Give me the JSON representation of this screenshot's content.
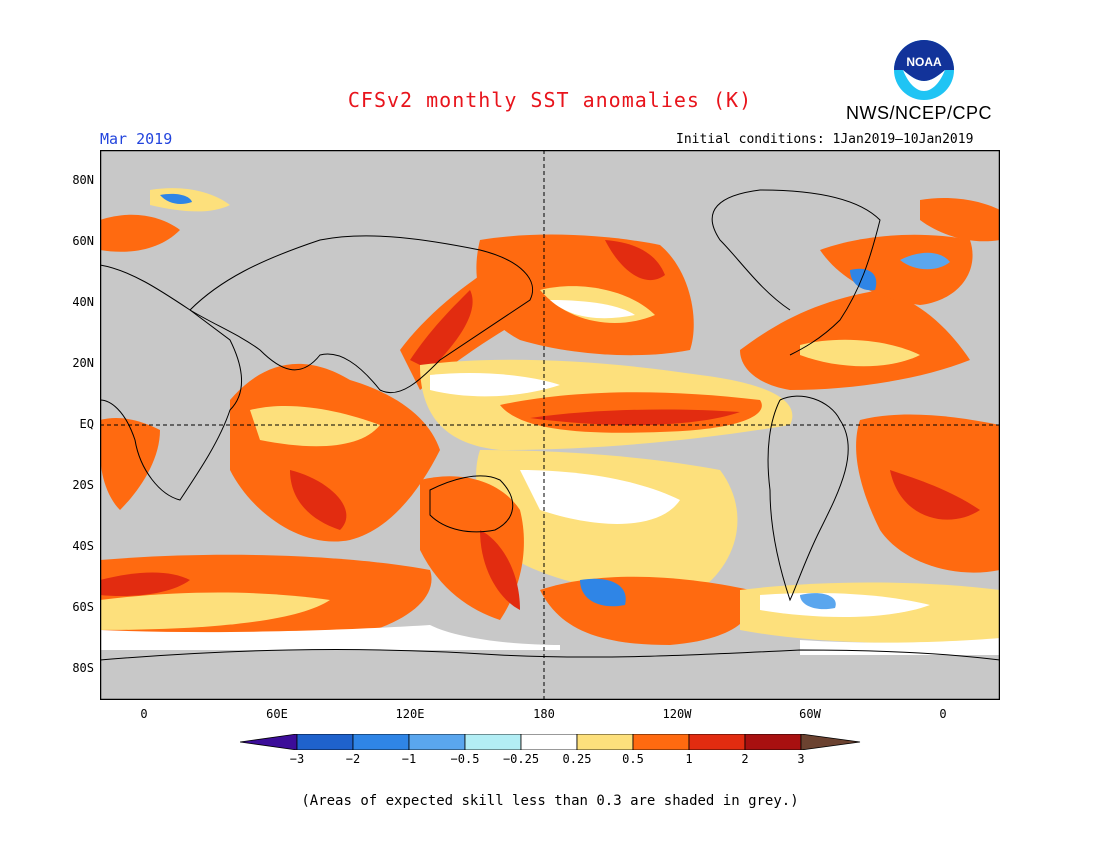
{
  "title": "CFSv2 monthly SST anomalies (K)",
  "agency": "NWS/NCEP/CPC",
  "logo_text": "NOAA",
  "month": "Mar 2019",
  "initial_conditions": "Initial conditions: 1Jan2019–10Jan2019",
  "lat_labels": [
    "80N",
    "60N",
    "40N",
    "20N",
    "EQ",
    "20S",
    "40S",
    "60S",
    "80S"
  ],
  "lon_labels": [
    "0",
    "60E",
    "120E",
    "180",
    "120W",
    "60W",
    "0"
  ],
  "colorbar": {
    "labels": [
      "−3",
      "−2",
      "−1",
      "−0.5",
      "−0.25",
      "0.25",
      "0.5",
      "1",
      "2",
      "3"
    ],
    "colors": [
      "#3c0d99",
      "#1f62cc",
      "#2f85e6",
      "#5aa6ee",
      "#b3eef5",
      "#ffffff",
      "#fde07c",
      "#ff6a10",
      "#e22c10",
      "#a81010",
      "#6b4230"
    ]
  },
  "skill_mask_color": "#c8c8c8",
  "note": "(Areas of expected skill less than 0.3 are shaded in grey.)"
}
